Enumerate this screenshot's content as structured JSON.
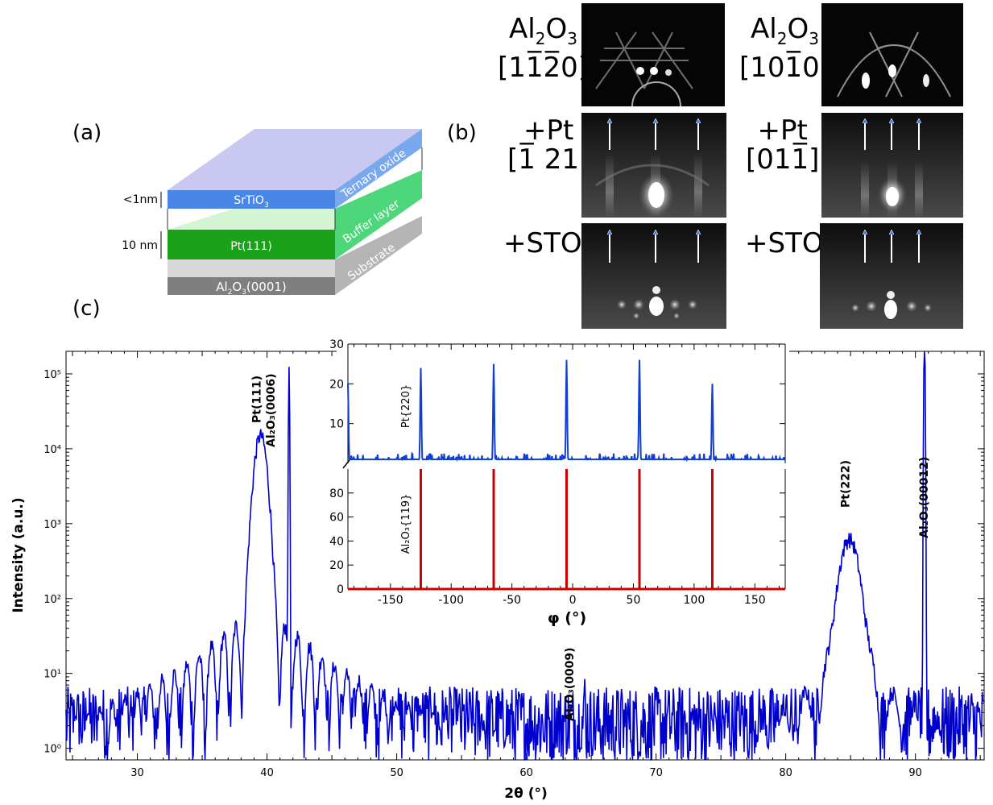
{
  "panel_labels": {
    "a": "(a)",
    "b": "(b)",
    "c": "(c)"
  },
  "stack": {
    "thickness_top": "<1nm",
    "thickness_mid": "10 nm",
    "layers": {
      "srtio3": "SrTiO",
      "srtio3_sub": "3",
      "pt": "Pt(111)",
      "substrate_pre": "Al",
      "substrate_sub1": "2",
      "substrate_mid": "O",
      "substrate_sub2": "3",
      "substrate_post": "(0001)"
    },
    "side_labels": {
      "ternary": "Ternary oxide",
      "buffer": "Buffer layer",
      "substrate": "Substrate"
    },
    "colors": {
      "top_face": "#c8c8f0",
      "srtio3": "#4a86e8",
      "srtio3_side": "#79a8ef",
      "pt_light": "#d4f5d4",
      "pt": "#1aa31a",
      "pt_side": "#4dd67a",
      "gray_light": "#d8d8d8",
      "substrate": "#7f7f7f",
      "substrate_side": "#b5b5b5"
    }
  },
  "rheed": {
    "rows": [
      {
        "left": [
          "Al",
          "2",
          "O",
          "3"
        ],
        "left_dir": "[11̅2̅0]",
        "right": [
          "Al",
          "2",
          "O",
          "3"
        ],
        "right_dir": "[101̅0]"
      },
      {
        "left": "+Pt",
        "left_dir": "[1̅ 21]",
        "right": "+Pt",
        "right_dir": "[011̅]"
      },
      {
        "left": "+STO",
        "right": "+STO"
      }
    ],
    "arrow_color": "#3a78e0"
  },
  "chart_data": [
    {
      "type": "line",
      "title": "",
      "xlabel": "2θ (°)",
      "ylabel": "Intensity (a.u.)",
      "xlim": [
        24.5,
        95.3
      ],
      "yscale": "log",
      "ylim": [
        0.7,
        200000
      ],
      "x_ticks": [
        "30",
        "40",
        "50",
        "60",
        "70",
        "80",
        "90"
      ],
      "y_ticks": [
        "10⁰",
        "10¹",
        "10²",
        "10³",
        "10⁴",
        "10⁵"
      ],
      "line_color": "#0000cc",
      "peaks": [
        {
          "x": 39.5,
          "y": 15000,
          "label": "Pt(111)"
        },
        {
          "x": 41.7,
          "y": 130000,
          "label": "Al₂O₃(0006)"
        },
        {
          "x": 64.5,
          "y": 8,
          "label": "Al₂O₃(0009)"
        },
        {
          "x": 84.9,
          "y": 600,
          "label": "Pt(222)"
        },
        {
          "x": 90.7,
          "y": 270000,
          "label": "Al₂O₃(00012)"
        }
      ]
    },
    {
      "type": "line",
      "title": "",
      "xlabel": "φ (°)",
      "xlim": [
        -185,
        175
      ],
      "x_ticks": [
        "-150",
        "-100",
        "-50",
        "0",
        "50",
        "100",
        "150"
      ],
      "series": [
        {
          "name": "Pt{220}",
          "color": "#1040d0",
          "ylim": [
            0,
            30
          ],
          "y_ticks": [
            "10",
            "20",
            "30"
          ],
          "peaks": [
            {
              "x": -185,
              "y": 20
            },
            {
              "x": -125,
              "y": 24
            },
            {
              "x": -65,
              "y": 25
            },
            {
              "x": -5,
              "y": 26
            },
            {
              "x": 55,
              "y": 26
            },
            {
              "x": 115,
              "y": 20
            }
          ],
          "baseline": 1
        },
        {
          "name": "Al₂O₃{119}",
          "color": "#cc0000",
          "ylim": [
            0,
            100
          ],
          "y_ticks": [
            "0",
            "20",
            "40",
            "60",
            "80"
          ],
          "peaks": [
            {
              "x": -125,
              "y": 100
            },
            {
              "x": -65,
              "y": 100
            },
            {
              "x": -5,
              "y": 100
            },
            {
              "x": 55,
              "y": 100
            },
            {
              "x": 115,
              "y": 100
            }
          ],
          "baseline": 0
        }
      ]
    }
  ]
}
